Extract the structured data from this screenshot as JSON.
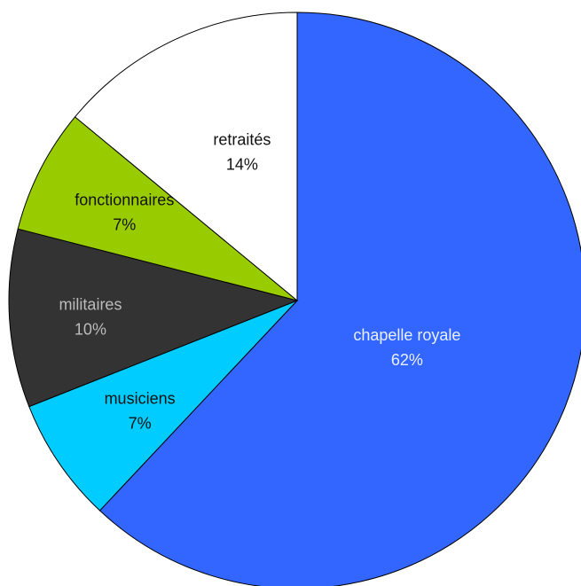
{
  "chart_data": {
    "type": "pie",
    "slices": [
      {
        "label": "chapelle royale",
        "value": 62,
        "value_label": "62%",
        "color": "#3366ff",
        "text_color": "#e8f0ff"
      },
      {
        "label": "musiciens",
        "value": 7,
        "value_label": "7%",
        "color": "#00ccff",
        "text_color": "#111111"
      },
      {
        "label": "militaires",
        "value": 10,
        "value_label": "10%",
        "color": "#333333",
        "text_color": "#bbbbbb"
      },
      {
        "label": "fonctionnaires",
        "value": 7,
        "value_label": "7%",
        "color": "#99cc00",
        "text_color": "#111111"
      },
      {
        "label": "retraités",
        "value": 14,
        "value_label": "14%",
        "color": "#ffffff",
        "text_color": "#111111"
      }
    ],
    "start_angle_deg": 0,
    "direction": "clockwise",
    "legend": "none"
  }
}
